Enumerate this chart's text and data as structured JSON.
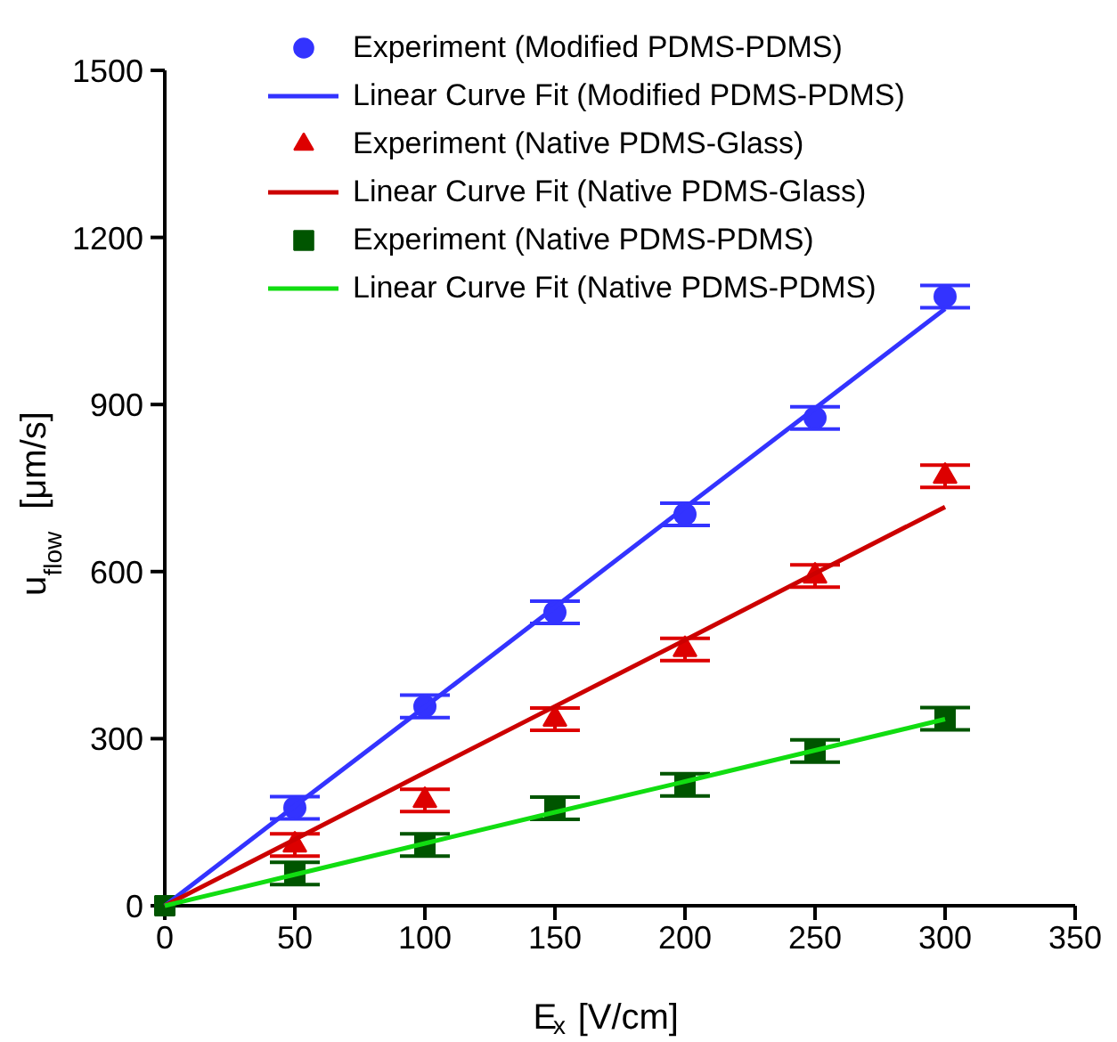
{
  "chart_data": {
    "type": "scatter",
    "xlabel": "E$_{x}$ [V/cm]",
    "ylabel": "u$_{flow}$ [μm/s]",
    "xlim": [
      0,
      350
    ],
    "xticks": [
      0,
      50,
      100,
      150,
      200,
      250,
      300,
      350
    ],
    "ylim": [
      0,
      1500
    ],
    "yticks": [
      0,
      300,
      600,
      900,
      1200,
      1500
    ],
    "grid": false,
    "legend": "top",
    "x": [
      0,
      50,
      100,
      150,
      200,
      250,
      300
    ],
    "series": [
      {
        "name": "Experiment (Modified PDMS-PDMS)",
        "marker": "circle",
        "color": "#3333ff",
        "values": [
          null,
          176,
          358,
          527,
          703,
          876,
          1094
        ],
        "errors": [
          null,
          20,
          20,
          20,
          20,
          20,
          20
        ]
      },
      {
        "name": "Linear Curve Fit (Modified PDMS-PDMS)",
        "type": "line",
        "color": "#3333ff",
        "values": [
          0,
          179,
          357,
          536,
          715,
          893,
          1072
        ]
      },
      {
        "name": "Experiment (Native PDMS-Glass)",
        "marker": "triangle",
        "color": "#dd0000",
        "values": [
          null,
          109,
          189,
          335,
          460,
          592,
          771
        ],
        "errors": [
          null,
          20,
          20,
          20,
          20,
          20,
          20
        ]
      },
      {
        "name": "Linear Curve Fit (Native PDMS-Glass)",
        "type": "line",
        "color": "#cc0000",
        "values": [
          0,
          119,
          239,
          358,
          477,
          597,
          716
        ]
      },
      {
        "name": "Experiment (Native PDMS-PDMS)",
        "marker": "square",
        "color": "#005500",
        "values": [
          0,
          58,
          109,
          175,
          217,
          278,
          336
        ],
        "errors": [
          null,
          20,
          20,
          20,
          20,
          20,
          20
        ]
      },
      {
        "name": "Linear Curve Fit (Native PDMS-PDMS)",
        "type": "line",
        "color": "#11dd11",
        "values": [
          0,
          56,
          112,
          168,
          223,
          279,
          335
        ]
      }
    ]
  }
}
